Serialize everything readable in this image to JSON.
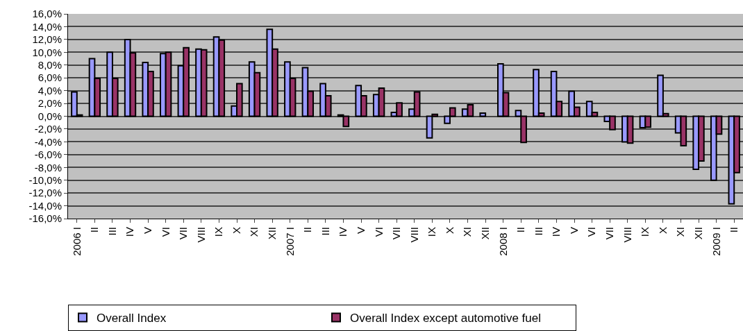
{
  "chart_data": {
    "type": "bar",
    "categories": [
      "2006 I",
      "II",
      "III",
      "IV",
      "V",
      "VI",
      "VII",
      "VIII",
      "IX",
      "X",
      "XI",
      "XII",
      "2007 I",
      "II",
      "III",
      "IV",
      "V",
      "VI",
      "VII",
      "VIII",
      "IX",
      "X",
      "XI",
      "XII",
      "2008 I",
      "II",
      "III",
      "IV",
      "V",
      "VI",
      "VII",
      "VIII",
      "IX",
      "X",
      "XI",
      "XII",
      "2009 I",
      "II"
    ],
    "series": [
      {
        "name": "Overall Index",
        "color": "#9999ff",
        "values": [
          3.8,
          9.0,
          10.0,
          12.0,
          8.4,
          9.8,
          7.9,
          10.5,
          12.4,
          1.6,
          8.5,
          13.6,
          8.5,
          7.6,
          5.1,
          0.2,
          4.8,
          3.4,
          0.6,
          1.1,
          -3.4,
          -1.1,
          1.1,
          0.5,
          8.2,
          0.9,
          7.3,
          7.0,
          3.9,
          2.3,
          -0.8,
          -4.0,
          -1.8,
          6.4,
          -2.6,
          -8.3,
          -10.0,
          -13.7
        ]
      },
      {
        "name": "Overall Index except automotive fuel",
        "color": "#993366",
        "values": [
          0.2,
          5.9,
          5.9,
          9.9,
          7.0,
          10.0,
          10.7,
          10.4,
          11.9,
          5.1,
          6.8,
          10.5,
          5.9,
          3.9,
          3.2,
          -1.6,
          3.2,
          4.4,
          2.1,
          3.8,
          0.3,
          1.3,
          1.8,
          null,
          3.7,
          -4.1,
          0.5,
          2.3,
          1.4,
          0.6,
          -2.1,
          -4.2,
          -1.7,
          0.4,
          -4.6,
          -7.0,
          -2.8,
          -8.8
        ]
      }
    ],
    "ylim": [
      -16,
      16
    ],
    "yticks": [
      {
        "value": -16,
        "label": "-16,0%"
      },
      {
        "value": -14,
        "label": "-14,0%"
      },
      {
        "value": -12,
        "label": "-12,0%"
      },
      {
        "value": -10,
        "label": "-10,0%"
      },
      {
        "value": -8,
        "label": "-8,0%"
      },
      {
        "value": -6,
        "label": "-6,0%"
      },
      {
        "value": -4,
        "label": "-4,0%"
      },
      {
        "value": -2,
        "label": "-2,0%"
      },
      {
        "value": 0,
        "label": "0,0%"
      },
      {
        "value": 2,
        "label": "2,0%"
      },
      {
        "value": 4,
        "label": "4,0%"
      },
      {
        "value": 6,
        "label": "6,0%"
      },
      {
        "value": 8,
        "label": "8,0%"
      },
      {
        "value": 10,
        "label": "10,0%"
      },
      {
        "value": 12,
        "label": "12,0%"
      },
      {
        "value": 14,
        "label": "14,0%"
      },
      {
        "value": 16,
        "label": "16,0%"
      }
    ],
    "grid": "y",
    "legend": "bottom"
  }
}
